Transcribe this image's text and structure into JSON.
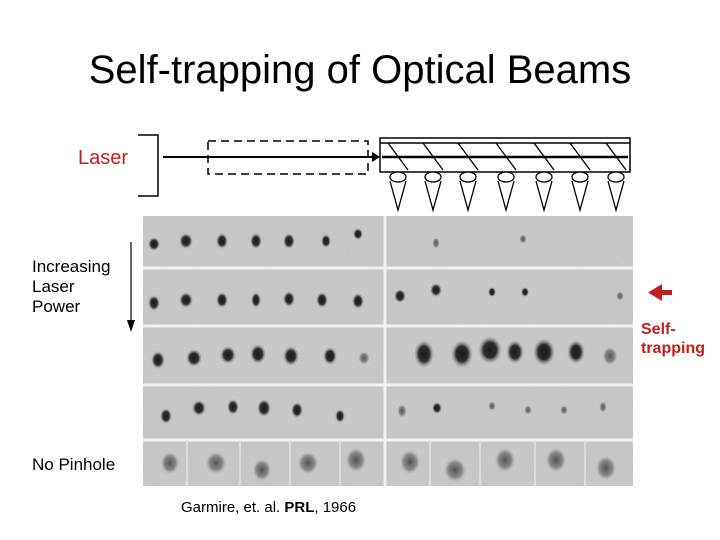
{
  "slide": {
    "title": "Self-trapping of Optical Beams",
    "laser_label": "Laser",
    "power_label_lines": [
      "Increasing",
      "Laser",
      "Power"
    ],
    "pinhole_label": "No Pinhole",
    "selftrap_label_lines": [
      "Self-",
      "trapping"
    ],
    "citation_authors": "Garmire, et. al.",
    "citation_journal": "PRL",
    "citation_year": ", 1966",
    "accent_color": "#c0201a"
  }
}
